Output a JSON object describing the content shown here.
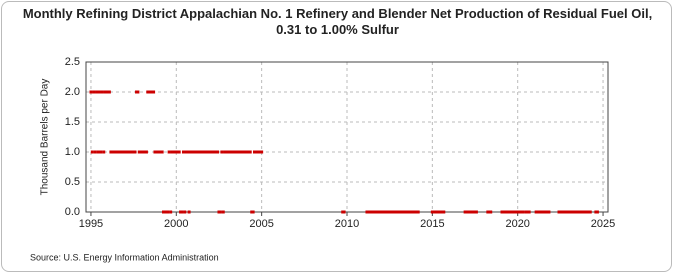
{
  "chart_data": {
    "type": "scatter",
    "title": "Monthly Refining District Appalachian No. 1 Refinery and Blender Net Production of Residual Fuel Oil, 0.31 to 1.00% Sulfur",
    "y_label": "Thousand Barrels per Day",
    "source": "Source: U.S. Energy Information Administration",
    "color": "#cc0000",
    "grid": true,
    "xlim": [
      1994.71,
      2025.29
    ],
    "ylim": [
      0,
      2.5
    ],
    "xticks": [
      1995,
      2000,
      2005,
      2010,
      2015,
      2020,
      2025
    ],
    "yticks": [
      {
        "value": 0,
        "label": "0.0"
      },
      {
        "value": 0.5,
        "label": "0.5"
      },
      {
        "value": 1,
        "label": "1.0"
      },
      {
        "value": 1.5,
        "label": "1.5"
      },
      {
        "value": 2,
        "label": "2.0"
      },
      {
        "value": 2.5,
        "label": "2.5"
      }
    ],
    "x": [
      1995,
      1995.08,
      1995.17,
      1995.25,
      1995.33,
      1995.42,
      1995.5,
      1995.58,
      1995.67,
      1995.75,
      1995.83,
      1995.92,
      1996,
      1996.08,
      1996.17,
      1996.25,
      1996.33,
      1996.42,
      1996.5,
      1996.58,
      1996.67,
      1996.75,
      1996.83,
      1996.92,
      1997,
      1997.08,
      1997.17,
      1997.25,
      1997.33,
      1997.42,
      1997.5,
      1997.58,
      1997.67,
      1997.75,
      1997.83,
      1997.92,
      1998,
      1998.08,
      1998.17,
      1998.25,
      1998.33,
      1998.42,
      1998.5,
      1998.58,
      1998.67,
      1998.75,
      1998.83,
      1998.92,
      1999,
      1999.08,
      1999.17,
      1999.25,
      1999.33,
      1999.42,
      1999.5,
      1999.58,
      1999.67,
      1999.75,
      1999.83,
      1999.92,
      2000,
      2000.08,
      2000.17,
      2000.25,
      2000.33,
      2000.42,
      2000.5,
      2000.58,
      2000.67,
      2000.75,
      2000.83,
      2000.92,
      2001,
      2001.08,
      2001.17,
      2001.25,
      2001.33,
      2001.42,
      2001.5,
      2001.58,
      2001.67,
      2001.75,
      2001.83,
      2001.92,
      2002,
      2002.08,
      2002.17,
      2002.25,
      2002.33,
      2002.42,
      2002.5,
      2002.58,
      2002.67,
      2002.75,
      2002.83,
      2002.92,
      2003,
      2003.08,
      2003.17,
      2003.25,
      2003.33,
      2003.42,
      2003.5,
      2003.58,
      2003.67,
      2003.75,
      2003.83,
      2003.92,
      2004,
      2004.08,
      2004.17,
      2004.25,
      2004.33,
      2004.42,
      2004.5,
      2004.58,
      2004.67,
      2004.75,
      2004.83,
      2004.92,
      2005,
      2009.75,
      2009.83,
      2011.17,
      2011.25,
      2011.33,
      2011.42,
      2011.5,
      2011.58,
      2011.67,
      2011.75,
      2011.83,
      2011.92,
      2012,
      2012.08,
      2012.17,
      2012.25,
      2012.33,
      2012.42,
      2012.5,
      2012.58,
      2012.67,
      2012.75,
      2012.83,
      2012.92,
      2013,
      2013.08,
      2013.17,
      2013.25,
      2013.33,
      2013.42,
      2013.5,
      2013.58,
      2013.67,
      2013.75,
      2013.83,
      2013.92,
      2014,
      2014.08,
      2014.17,
      2015,
      2015.08,
      2015.17,
      2015.25,
      2015.33,
      2015.42,
      2015.5,
      2015.58,
      2015.67,
      2016.92,
      2017,
      2017.08,
      2017.17,
      2017.25,
      2017.33,
      2017.42,
      2017.5,
      2017.58,
      2018.25,
      2018.33,
      2018.42,
      2019.08,
      2019.17,
      2019.25,
      2019.33,
      2019.42,
      2019.5,
      2019.58,
      2019.67,
      2019.75,
      2019.83,
      2019.92,
      2020,
      2020.08,
      2020.17,
      2020.25,
      2020.33,
      2020.5,
      2020.58,
      2020.67,
      2021.08,
      2021.17,
      2021.25,
      2021.33,
      2021.42,
      2021.5,
      2021.58,
      2021.67,
      2021.75,
      2021.83,
      2022.42,
      2022.5,
      2022.58,
      2022.67,
      2022.75,
      2022.83,
      2022.92,
      2023,
      2023.08,
      2023.17,
      2023.25,
      2023.33,
      2023.42,
      2023.5,
      2023.58,
      2023.67,
      2023.75,
      2023.83,
      2023.92,
      2024,
      2024.08,
      2024.17,
      2024.25,
      2024.58,
      2024.67
    ],
    "values": [
      2,
      1,
      2,
      1,
      2,
      1,
      2,
      1,
      2,
      1,
      2,
      2,
      2,
      2,
      1,
      1,
      1,
      1,
      1,
      1,
      1,
      1,
      1,
      1,
      1,
      1,
      1,
      1,
      1,
      1,
      1,
      1,
      2,
      2,
      1,
      1,
      1,
      1,
      1,
      1,
      2,
      2,
      2,
      2,
      2,
      1,
      1,
      1,
      1,
      1,
      1,
      0,
      0,
      0,
      0,
      1,
      0,
      1,
      1,
      1,
      1,
      1,
      1,
      0,
      0,
      1,
      0,
      1,
      1,
      0,
      1,
      1,
      1,
      1,
      1,
      1,
      1,
      1,
      1,
      1,
      1,
      1,
      1,
      1,
      1,
      1,
      1,
      1,
      1,
      1,
      0,
      0,
      1,
      0,
      1,
      1,
      1,
      1,
      1,
      1,
      1,
      1,
      1,
      1,
      1,
      1,
      1,
      1,
      1,
      1,
      1,
      1,
      1,
      0,
      0,
      1,
      1,
      1,
      1,
      1,
      1,
      0,
      0,
      0,
      0,
      0,
      0,
      0,
      0,
      0,
      0,
      0,
      0,
      0,
      0,
      0,
      0,
      0,
      0,
      0,
      0,
      0,
      0,
      0,
      0,
      0,
      0,
      0,
      0,
      0,
      0,
      0,
      0,
      0,
      0,
      0,
      0,
      0,
      0,
      0,
      0,
      0,
      0,
      0,
      0,
      0,
      0,
      0,
      0,
      0,
      0,
      0,
      0,
      0,
      0,
      0,
      0,
      0,
      0,
      0,
      0,
      0,
      0,
      0,
      0,
      0,
      0,
      0,
      0,
      0,
      0,
      0,
      0,
      0,
      0,
      0,
      0,
      0,
      0,
      0,
      0,
      0,
      0,
      0,
      0,
      0,
      0,
      0,
      0,
      0,
      0,
      0,
      0,
      0,
      0,
      0,
      0,
      0,
      0,
      0,
      0,
      0,
      0,
      0,
      0,
      0,
      0,
      0,
      0,
      0,
      0,
      0,
      0,
      0,
      0
    ]
  }
}
